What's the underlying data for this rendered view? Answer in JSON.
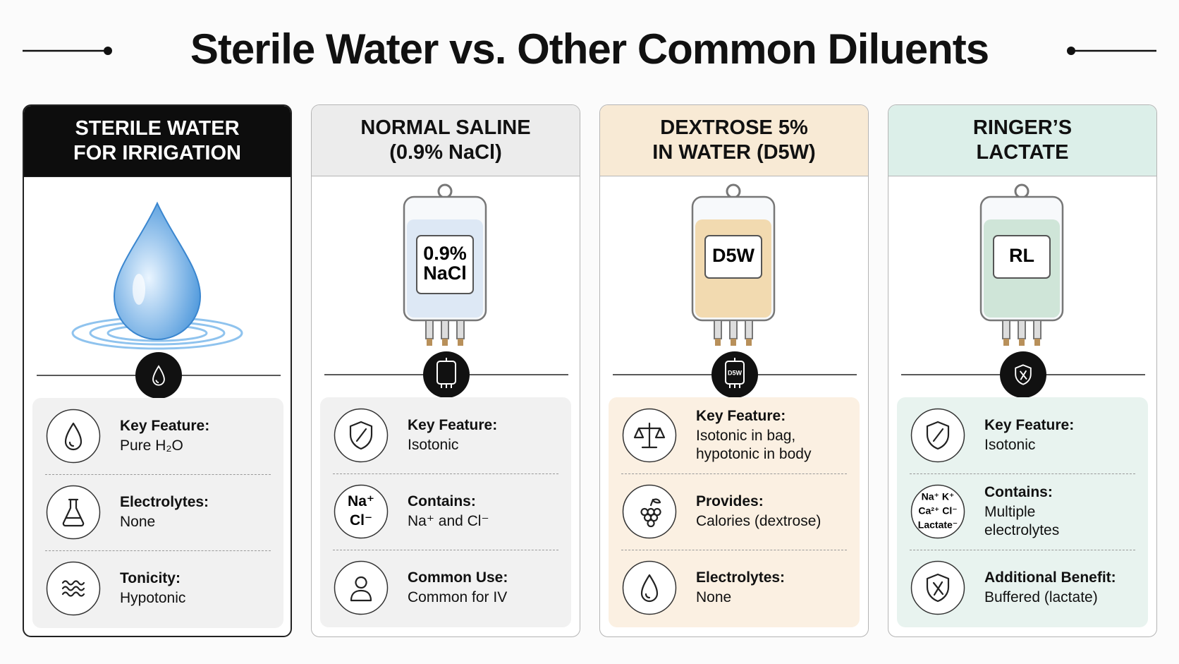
{
  "title": "Sterile Water vs. Other Common Diluents",
  "columns": [
    {
      "header": [
        "STERILE WATER",
        "FOR IRRIGATION"
      ],
      "rows": [
        {
          "label": "Key Feature:",
          "value": [
            "Pure H₂O"
          ]
        },
        {
          "label": "Electrolytes:",
          "value": [
            "None"
          ]
        },
        {
          "label": "Tonicity:",
          "value": [
            "Hypotonic"
          ]
        }
      ]
    },
    {
      "header": [
        "NORMAL SALINE",
        "(0.9% NaCl)"
      ],
      "bag_label": [
        "0.9%",
        "NaCl"
      ],
      "rows": [
        {
          "label": "Key Feature:",
          "value": [
            "Isotonic"
          ]
        },
        {
          "label": "Contains:",
          "value": [
            "Na⁺ and Cl⁻"
          ],
          "icon_text": [
            "Na⁺",
            "Cl⁻"
          ]
        },
        {
          "label": "Common Use:",
          "value": [
            "Common for IV"
          ]
        }
      ]
    },
    {
      "header": [
        "DEXTROSE 5%",
        "IN WATER (D5W)"
      ],
      "bag_label": [
        "D5W"
      ],
      "rows": [
        {
          "label": "Key Feature:",
          "value": [
            "Isotonic in bag,",
            "hypotonic in body"
          ]
        },
        {
          "label": "Provides:",
          "value": [
            "Calories (dextrose)"
          ]
        },
        {
          "label": "Electrolytes:",
          "value": [
            "None"
          ]
        }
      ]
    },
    {
      "header": [
        "RINGER’S",
        "LACTATE"
      ],
      "bag_label": [
        "RL"
      ],
      "rows": [
        {
          "label": "Key Feature:",
          "value": [
            "Isotonic"
          ]
        },
        {
          "label": "Contains:",
          "value": [
            "Multiple",
            "electrolytes"
          ],
          "icon_text": [
            "Na⁺  K⁺",
            "Ca²⁺  Cl⁻",
            "Lactate⁻"
          ]
        },
        {
          "label": "Additional Benefit:",
          "value": [
            "Buffered (lactate)"
          ]
        }
      ]
    }
  ]
}
